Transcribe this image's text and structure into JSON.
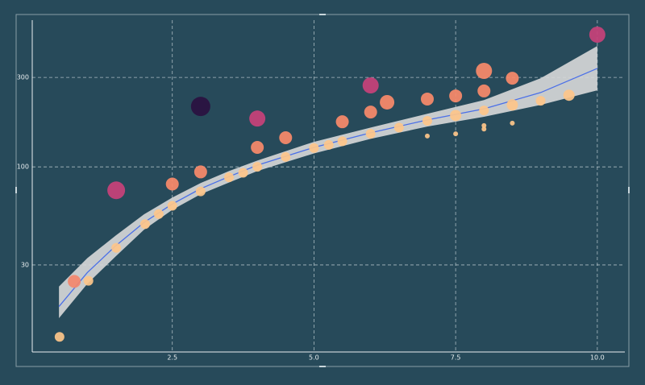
{
  "chart_data": {
    "type": "scatter",
    "yscale": "log",
    "grid": true,
    "xlim": [
      0,
      10.5
    ],
    "ylim": [
      10,
      600
    ],
    "xticks": [
      2.5,
      {
        "value": 5,
        "label": "5.0"
      },
      7.5,
      {
        "value": 10,
        "label": "10.0"
      }
    ],
    "yticks": [
      30,
      100,
      300
    ],
    "x": [
      0.51,
      0.77,
      1.02,
      1.51,
      1.51,
      2.02,
      2.26,
      2.5,
      2.5,
      3.0,
      3.0,
      3.0,
      3.5,
      3.75,
      4.0,
      4.0,
      4.0,
      4.5,
      4.5,
      5.0,
      5.26,
      5.5,
      5.5,
      6.0,
      6.0,
      6.0,
      6.29,
      6.5,
      7.0,
      7.0,
      7.0,
      7.5,
      7.5,
      7.5,
      8.0,
      8.0,
      8.0,
      8.0,
      8.0,
      8.5,
      8.5,
      8.5,
      9.0,
      9.5,
      10.0
    ],
    "y": [
      12.4,
      24.5,
      24.7,
      75,
      37,
      49.5,
      56,
      62,
      81,
      74,
      94,
      210,
      88,
      93,
      100,
      127,
      181,
      113,
      143,
      126,
      131,
      137,
      174,
      150,
      196,
      272,
      221,
      162,
      176,
      230,
      146,
      188,
      239,
      150,
      200,
      254,
      325,
      166,
      159,
      214,
      297,
      171,
      225,
      241,
      507
    ],
    "sizes": [
      6,
      8,
      6,
      11,
      6,
      6,
      6,
      6,
      8,
      6,
      8,
      12,
      6,
      6,
      6,
      8,
      10,
      6,
      8,
      6,
      6,
      6,
      8,
      6,
      8,
      10,
      9,
      6,
      6,
      8,
      3,
      7,
      8,
      3,
      6,
      8,
      10,
      3,
      3,
      7,
      8,
      3,
      6,
      7,
      10
    ],
    "colors": [
      "#fdc68a",
      "#f3876c",
      "#fdc68a",
      "#c8417a",
      "#fdc68a",
      "#fdc68a",
      "#fdc68a",
      "#fdc68a",
      "#fa8a6a",
      "#fdc68a",
      "#fa8a6a",
      "#2a1040",
      "#fdc68a",
      "#fdc68a",
      "#fdc68a",
      "#fa8a6a",
      "#c8417a",
      "#fdc68a",
      "#fa8a6a",
      "#fdc68a",
      "#fdc68a",
      "#fdc68a",
      "#fa8a6a",
      "#fdc68a",
      "#fa8a6a",
      "#c8417a",
      "#fa8a6a",
      "#fdc68a",
      "#fdc68a",
      "#fa8a6a",
      "#fdc68a",
      "#fdc68a",
      "#fa8a6a",
      "#fdc68a",
      "#fdc68a",
      "#fa8a6a",
      "#fa8a6a",
      "#fdc68a",
      "#fdc68a",
      "#fdc68a",
      "#fa8a6a",
      "#fdc68a",
      "#fdc68a",
      "#fdc68a",
      "#c8417a"
    ],
    "fit": {
      "color": "#4a6fe8",
      "band_color": "#d9d9d9",
      "x": [
        0.5,
        1,
        1.5,
        2,
        2.5,
        3,
        3.5,
        4,
        5,
        6,
        7,
        8,
        9,
        10
      ],
      "y": [
        18.0,
        27.3,
        37.9,
        50.5,
        63.4,
        76.5,
        88.7,
        102,
        127,
        152,
        178,
        204,
        249,
        335
      ],
      "lower": [
        15.6,
        23.8,
        33.3,
        46.2,
        59,
        71.5,
        82.5,
        95,
        118,
        141,
        164,
        185,
        214,
        256
      ],
      "upper": [
        23,
        32.6,
        43,
        55.8,
        68.6,
        82,
        95,
        108,
        136,
        162,
        192,
        227,
        297,
        441
      ]
    }
  }
}
